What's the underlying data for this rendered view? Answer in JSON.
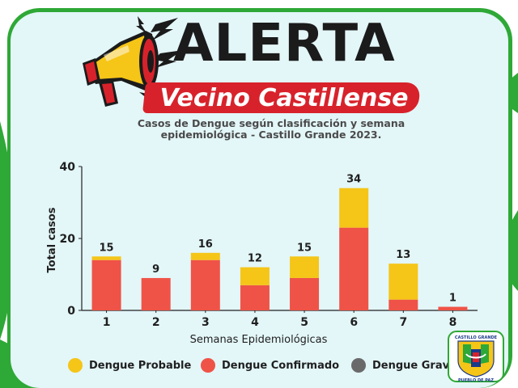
{
  "header": {
    "alert_title": "ALERTA",
    "subtitle": "Vecino Castillense",
    "description_line1": "Casos de Dengue según clasificación y semana",
    "description_line2": "epidemiológica - Castillo Grande 2023."
  },
  "colors": {
    "probable": "#f5c518",
    "confirmado": "#ef5347",
    "grave": "#6a6a6a",
    "accent_red": "#d8222b",
    "frame_green": "#2ea836",
    "panel_bg": "#e3f6f8"
  },
  "badge": {
    "top_text": "CASTILLO GRANDE",
    "bottom_text": "PUEBLO DE PAZ"
  },
  "chart_data": {
    "type": "bar",
    "stacked": true,
    "categories": [
      "1",
      "2",
      "3",
      "4",
      "5",
      "6",
      "7",
      "8"
    ],
    "totals": [
      15,
      9,
      16,
      12,
      15,
      34,
      13,
      1
    ],
    "series": [
      {
        "name": "Dengue Confirmado",
        "color": "#ef5347",
        "values": [
          14,
          9,
          14,
          7,
          9,
          23,
          3,
          1
        ]
      },
      {
        "name": "Dengue Probable",
        "color": "#f5c518",
        "values": [
          1,
          0,
          2,
          5,
          6,
          11,
          10,
          0
        ]
      }
    ],
    "legend": [
      "Dengue Probable",
      "Dengue Confirmado",
      "Dengue Grave"
    ],
    "xlabel": "Semanas Epidemiológicas",
    "ylabel": "Total casos",
    "yticks": [
      0,
      20,
      40
    ],
    "ylim": [
      0,
      40
    ],
    "legend_position": "bottom"
  }
}
